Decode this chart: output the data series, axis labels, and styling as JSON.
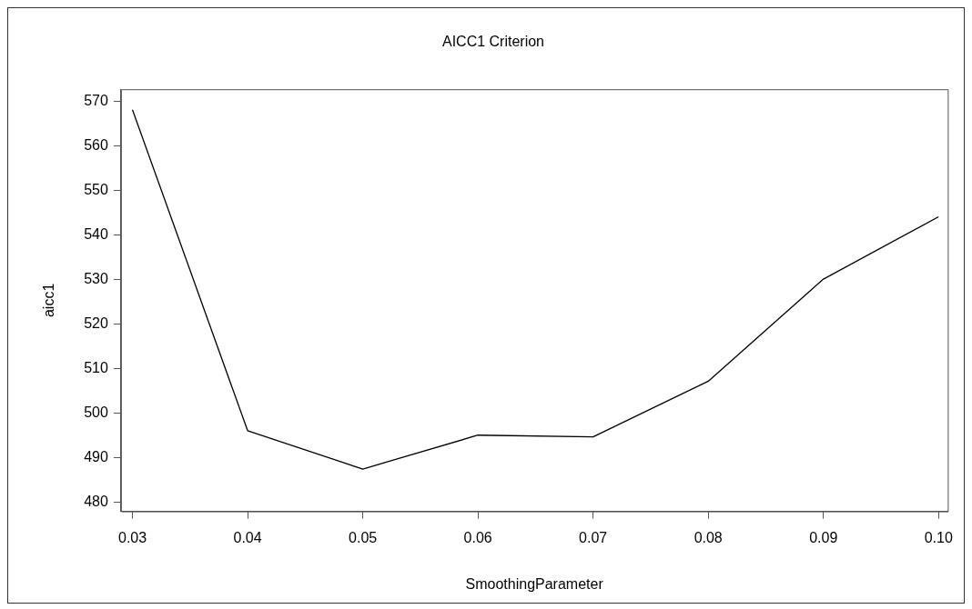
{
  "chart_data": {
    "type": "line",
    "title": "AICC1 Criterion",
    "xlabel": "SmoothingParameter",
    "ylabel": "aicc1",
    "x": [
      0.03,
      0.04,
      0.05,
      0.06,
      0.07,
      0.08,
      0.09,
      0.1
    ],
    "series": [
      {
        "color": "#000000",
        "values": [
          568.1,
          496.1,
          487.5,
          495.1,
          494.7,
          507.2,
          530.1,
          544.1
        ]
      }
    ],
    "xlim": [
      0.029,
      0.1008
    ],
    "xticks": [
      {
        "value": 0.03,
        "label": "0.03"
      },
      {
        "value": 0.04,
        "label": "0.04"
      },
      {
        "value": 0.05,
        "label": "0.05"
      },
      {
        "value": 0.06,
        "label": "0.06"
      },
      {
        "value": 0.07,
        "label": "0.07"
      },
      {
        "value": 0.08,
        "label": "0.08"
      },
      {
        "value": 0.09,
        "label": "0.09"
      },
      {
        "value": 0.1,
        "label": "0.10"
      }
    ],
    "ylim": [
      478,
      572.7
    ],
    "yticks": [
      480,
      490,
      500,
      510,
      520,
      530,
      540,
      550,
      560,
      570
    ],
    "grid": false,
    "legend": false,
    "marker": "none",
    "line_style": "solid"
  }
}
